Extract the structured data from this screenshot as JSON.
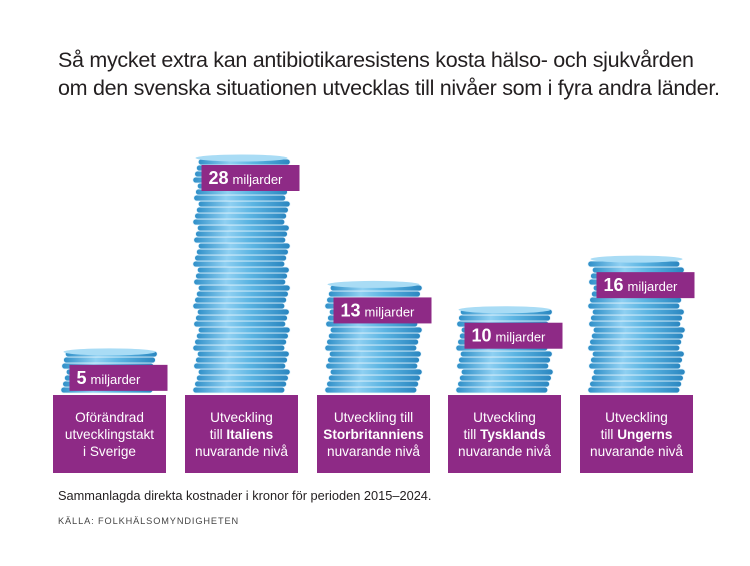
{
  "title_lines": [
    "Så mycket extra kan antibiotikaresistens kosta hälso- och sjukvården",
    "om den svenska situationen utvecklas till nivåer som i fyra andra länder."
  ],
  "chart_data": {
    "type": "bar",
    "unit": "miljarder",
    "categories": [
      {
        "pre": "Oförändrad utvecklingstakt i Sverige",
        "bold": "",
        "post": ""
      },
      {
        "pre": "Utveckling till ",
        "bold": "Italiens",
        "post": " nuvarande nivå"
      },
      {
        "pre": "Utveckling till ",
        "bold": "Storbritanniens",
        "post": " nuvarande nivå"
      },
      {
        "pre": "Utveckling till ",
        "bold": "Tysklands",
        "post": " nuvarande nivå"
      },
      {
        "pre": "Utveckling till ",
        "bold": "Ungerns",
        "post": " nuvarande nivå"
      }
    ],
    "values": [
      5,
      28,
      13,
      10,
      16
    ],
    "colors": {
      "bar_label": "#8e2a86",
      "coin": "#4fa8d8",
      "category_box": "#8e2a86"
    }
  },
  "footnote": "Sammanlagda direkta kostnader i kronor för perioden 2015–2024.",
  "source": "KÄLLA: FOLKHÄLSOMYNDIGHETEN"
}
